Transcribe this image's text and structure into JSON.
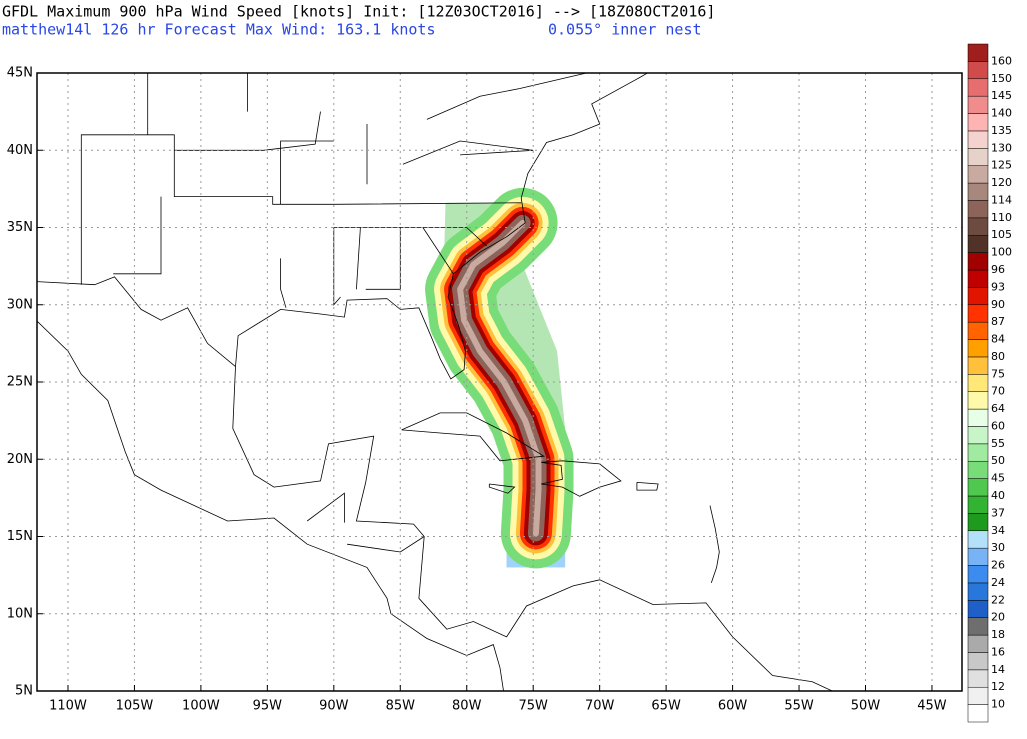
{
  "header": {
    "title": "GFDL Maximum 900 hPa Wind Speed [knots] Init: [12Z03OCT2016] --> [18Z08OCT2016]",
    "subtitle": "matthew14l 126 hr Forecast Max Wind: 163.1 knots",
    "nest": "0.055° inner nest"
  },
  "map": {
    "lon_range": [
      -112.33,
      -42.74
    ],
    "lat_range": [
      5,
      45
    ],
    "lon_ticks": [
      {
        "value": -110,
        "label": "110W"
      },
      {
        "value": -105,
        "label": "105W"
      },
      {
        "value": -100,
        "label": "100W"
      },
      {
        "value": -95,
        "label": "95W"
      },
      {
        "value": -90,
        "label": "90W"
      },
      {
        "value": -85,
        "label": "85W"
      },
      {
        "value": -80,
        "label": "80W"
      },
      {
        "value": -75,
        "label": "75W"
      },
      {
        "value": -70,
        "label": "70W"
      },
      {
        "value": -65,
        "label": "65W"
      },
      {
        "value": -60,
        "label": "60W"
      },
      {
        "value": -55,
        "label": "55W"
      },
      {
        "value": -50,
        "label": "50W"
      },
      {
        "value": -45,
        "label": "45W"
      }
    ],
    "lat_ticks": [
      {
        "value": 5,
        "label": "5N"
      },
      {
        "value": 10,
        "label": "10N"
      },
      {
        "value": 15,
        "label": "15N"
      },
      {
        "value": 20,
        "label": "20N"
      },
      {
        "value": 25,
        "label": "25N"
      },
      {
        "value": 30,
        "label": "30N"
      },
      {
        "value": 35,
        "label": "35N"
      },
      {
        "value": 40,
        "label": "40N"
      },
      {
        "value": 45,
        "label": "45N"
      }
    ]
  },
  "colorbar": {
    "levels": [
      10,
      12,
      14,
      16,
      18,
      20,
      22,
      24,
      26,
      30,
      34,
      37,
      40,
      45,
      50,
      55,
      60,
      64,
      70,
      75,
      80,
      84,
      87,
      90,
      93,
      96,
      100,
      105,
      110,
      114,
      120,
      125,
      130,
      135,
      140,
      145,
      150,
      160
    ],
    "colors": [
      "#ffffff",
      "#f0f0f0",
      "#e0e0e0",
      "#c8c8c8",
      "#aaaaaa",
      "#6e6e6e",
      "#1e5fc8",
      "#2878dc",
      "#3c8cf0",
      "#78b4f5",
      "#b4e1fa",
      "#1e9b1e",
      "#32b432",
      "#50c850",
      "#78dc78",
      "#a0eba0",
      "#c8f5c8",
      "#e6ffe6",
      "#fffaaa",
      "#ffe878",
      "#ffc03c",
      "#ffa000",
      "#ff6400",
      "#ff3200",
      "#e11400",
      "#c00000",
      "#a00000",
      "#503228",
      "#6e4b41",
      "#8c6459",
      "#a8877d",
      "#c8aaa0",
      "#e6d2c8",
      "#f5d2cd",
      "#ffb4b4",
      "#f08c8c",
      "#e66e6e",
      "#d24b4b",
      "#a01e1e"
    ]
  }
}
